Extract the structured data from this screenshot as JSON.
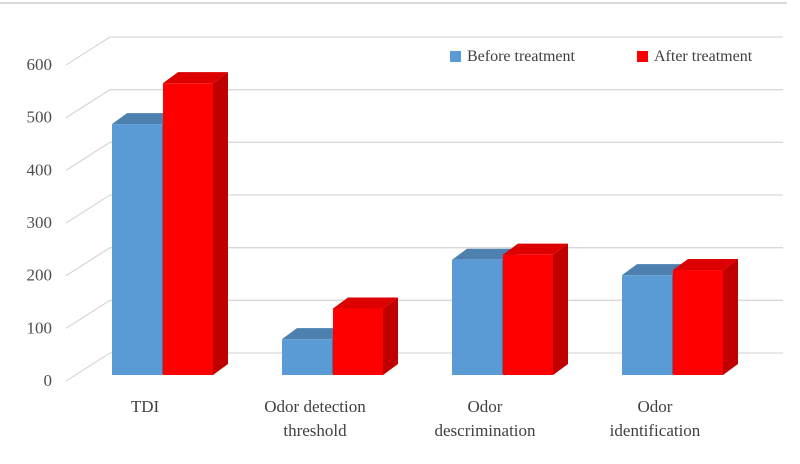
{
  "figure": {
    "kind": "3D clustered column chart",
    "background_color": "#FFFFFF",
    "top_border_color": "#D9D9D9"
  },
  "legend": {
    "position": "top",
    "items": [
      {
        "label": "Before treatment",
        "color": "#5B9BD5"
      },
      {
        "label": "After treatment",
        "color": "#FF0000"
      }
    ]
  },
  "chart_data": {
    "type": "bar",
    "subtype": "3d-clustered-column",
    "title": "",
    "xlabel": "",
    "ylabel": "",
    "categories": [
      "TDI",
      "Odor detection threshold",
      "Odor descrimination",
      "Odor identification"
    ],
    "category_label_lines": [
      [
        "TDI"
      ],
      [
        "Odor detection",
        "threshold"
      ],
      [
        "Odor",
        "descrimination"
      ],
      [
        "Odor",
        "identification"
      ]
    ],
    "series": [
      {
        "name": "Before treatment",
        "values": [
          490,
          70,
          225,
          195
        ],
        "front_color": "#5B9BD5",
        "top_color": "#4D7FAF",
        "side_color": "#41719C"
      },
      {
        "name": "After treatment",
        "values": [
          570,
          130,
          235,
          205
        ],
        "front_color": "#FF0000",
        "top_color": "#DC0000",
        "side_color": "#C00000"
      }
    ],
    "ylim": [
      0,
      600
    ],
    "yticks": [
      0,
      100,
      200,
      300,
      400,
      500,
      600
    ],
    "grid": true,
    "legend_position": "top",
    "gridline_color": "#D9D9D9",
    "tick_label_color": "#4D4D4D",
    "category_label_color": "#404040",
    "legend_text_color": "#404040"
  }
}
